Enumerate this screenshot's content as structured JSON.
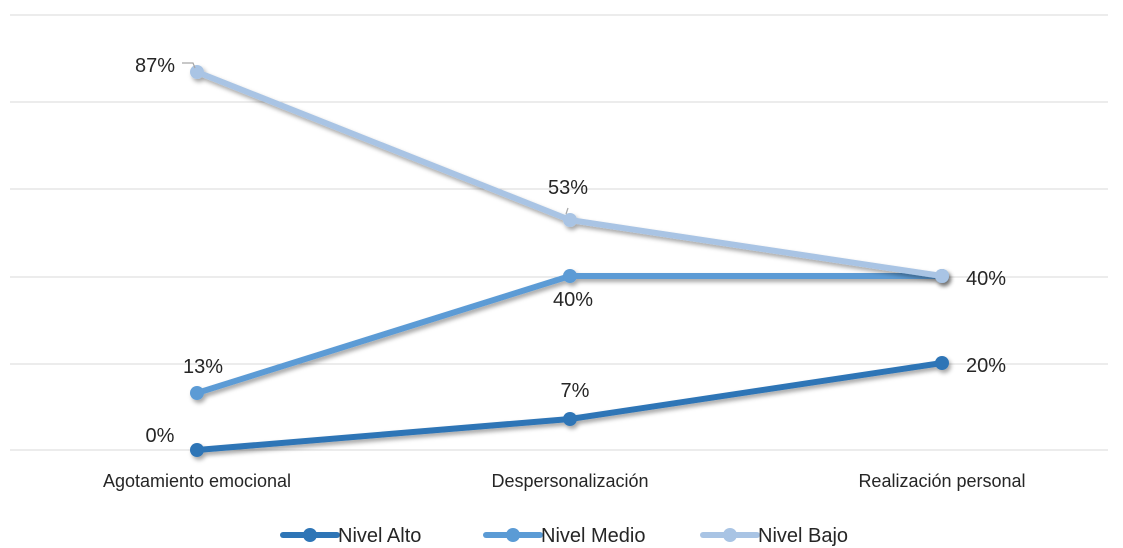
{
  "chart_data": {
    "type": "line",
    "categories": [
      "Agotamiento emocional",
      "Despersonalización",
      "Realización personal"
    ],
    "series": [
      {
        "name": "Nivel Alto",
        "values": [
          0,
          7,
          20
        ],
        "color": "#2e75b6"
      },
      {
        "name": "Nivel Medio",
        "values": [
          13,
          40,
          40
        ],
        "color": "#5b9bd5"
      },
      {
        "name": "Nivel Bajo",
        "values": [
          87,
          53,
          40
        ],
        "color": "#a9c4e4"
      }
    ],
    "data_labels": [
      [
        "0%",
        "7%",
        "20%"
      ],
      [
        "13%",
        "40%",
        "40%"
      ],
      [
        "87%",
        "53%",
        "40%"
      ]
    ],
    "title": "",
    "xlabel": "",
    "ylabel": "",
    "ylim": [
      0,
      100
    ],
    "grid": true,
    "legend_position": "bottom"
  }
}
